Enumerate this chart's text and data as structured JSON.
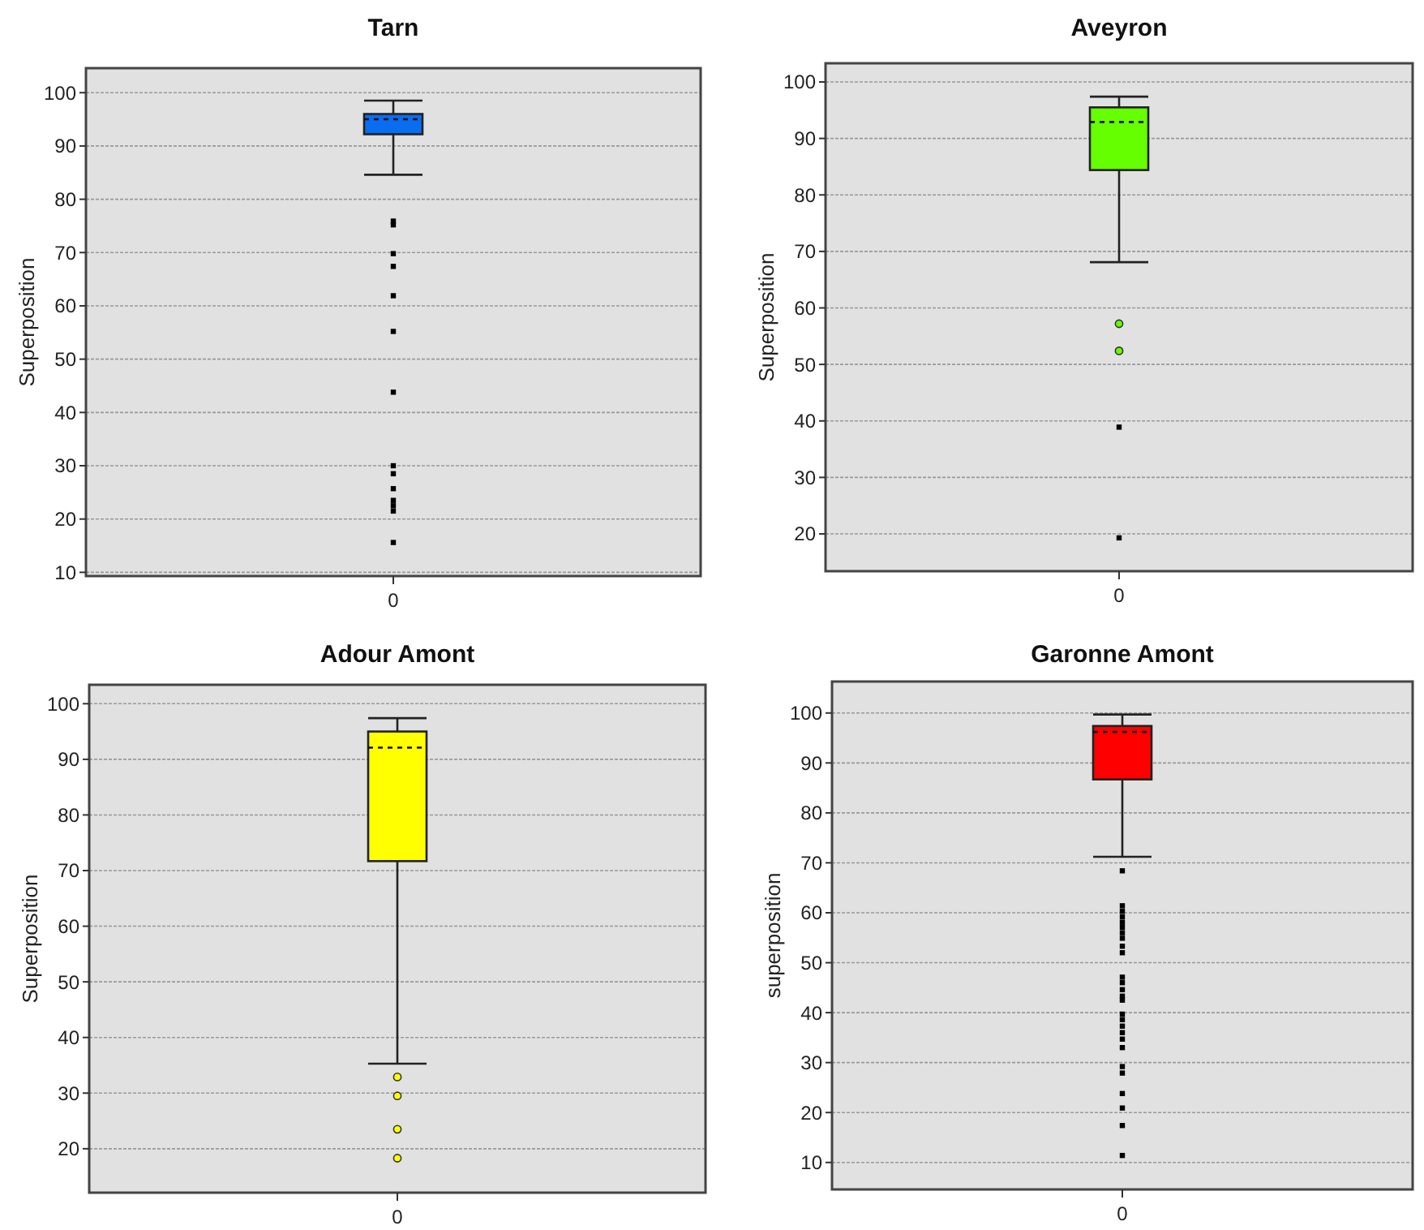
{
  "chart_data": [
    {
      "type": "box",
      "title": "Tarn",
      "ylabel": "Superposition",
      "categories": [
        "0"
      ],
      "ylim": [
        9.3,
        104.6
      ],
      "yticks": [
        10,
        20,
        30,
        40,
        50,
        60,
        70,
        80,
        90,
        100
      ],
      "grid": "y",
      "series": [
        {
          "color": "#0a6cf0",
          "boxes": [
            {
              "low": 84.6,
              "q1": 92.2,
              "median": 95,
              "q3": 96,
              "high": 98.5
            }
          ]
        },
        {
          "type": "scatter",
          "color": "#000000",
          "marker": "square",
          "x": [
            "0",
            "0",
            "0",
            "0",
            "0",
            "0",
            "0",
            "0",
            "0",
            "0",
            "0",
            "0",
            "0",
            "0"
          ],
          "values": [
            75.9,
            75.2,
            69.8,
            67.4,
            61.9,
            55.2,
            43.8,
            30,
            28.5,
            25.7,
            23.5,
            22.5,
            21.5,
            15.6
          ]
        }
      ]
    },
    {
      "type": "box",
      "title": "Aveyron",
      "ylabel": "Superposition",
      "categories": [
        "0"
      ],
      "ylim": [
        13.4,
        103.3
      ],
      "yticks": [
        20,
        30,
        40,
        50,
        60,
        70,
        80,
        90,
        100
      ],
      "grid": "y",
      "series": [
        {
          "color": "#66ff00",
          "boxes": [
            {
              "low": 68.1,
              "q1": 84.4,
              "median": 92.9,
              "q3": 95.5,
              "high": 97.4,
              "outliers": [
                57.2,
                52.4
              ]
            }
          ]
        },
        {
          "type": "scatter",
          "color": "#000000",
          "marker": "square",
          "x": [
            "0",
            "0"
          ],
          "values": [
            38.9,
            19.3
          ]
        }
      ]
    },
    {
      "type": "box",
      "title": "Adour Amont",
      "ylabel": "Superposition",
      "categories": [
        "0"
      ],
      "ylim": [
        12.1,
        103.4
      ],
      "yticks": [
        20,
        30,
        40,
        50,
        60,
        70,
        80,
        90,
        100
      ],
      "grid": "y",
      "series": [
        {
          "color": "#ffff00",
          "boxes": [
            {
              "low": 35.3,
              "q1": 71.7,
              "median": 92.1,
              "q3": 95,
              "high": 97.4,
              "outliers": [
                32.9,
                29.5,
                23.5,
                18.3
              ]
            }
          ]
        }
      ]
    },
    {
      "type": "box",
      "title": "Garonne Amont",
      "ylabel": "superposition",
      "categories": [
        "0"
      ],
      "ylim": [
        4.6,
        106.3
      ],
      "yticks": [
        10,
        20,
        30,
        40,
        50,
        60,
        70,
        80,
        90,
        100
      ],
      "grid": "y",
      "series": [
        {
          "color": "#ff0000",
          "boxes": [
            {
              "low": 71.2,
              "q1": 86.7,
              "median": 96.2,
              "q3": 97.4,
              "high": 99.7
            }
          ]
        },
        {
          "type": "scatter",
          "color": "#000000",
          "marker": "square",
          "x": [
            "0",
            "0",
            "0",
            "0",
            "0",
            "0",
            "0",
            "0",
            "0",
            "0",
            "0",
            "0",
            "0",
            "0",
            "0",
            "0",
            "0",
            "0",
            "0",
            "0",
            "0",
            "0",
            "0",
            "0",
            "0",
            "0",
            "0"
          ],
          "values": [
            68.4,
            61.4,
            60.3,
            59.2,
            58.1,
            57.1,
            56,
            54.9,
            53.3,
            52,
            47.1,
            46,
            44.6,
            43.3,
            42.5,
            39.7,
            38.6,
            37.3,
            36,
            34.7,
            33,
            29.2,
            27.9,
            23.8,
            20.9,
            17.4,
            11.4
          ]
        }
      ]
    }
  ]
}
